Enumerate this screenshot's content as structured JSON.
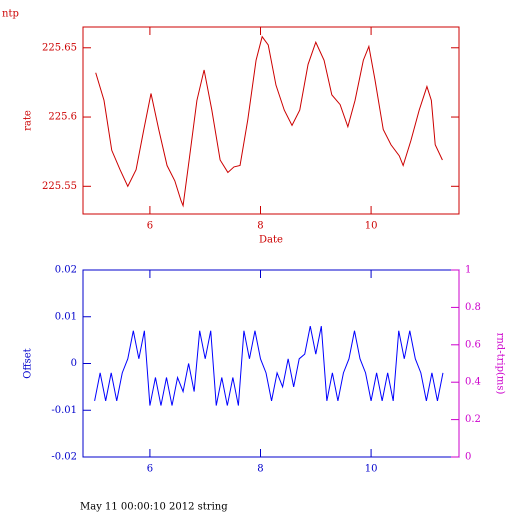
{
  "chart_data": [
    {
      "type": "line",
      "title": "ntp",
      "x_label": "Date",
      "y_label": "rate",
      "axis_color": "#cc0000",
      "xlim": [
        4.79,
        11.59
      ],
      "xticks": [
        6,
        8,
        10
      ],
      "ylim": [
        225.53,
        225.665
      ],
      "yticks": [
        225.55,
        225.6,
        225.65
      ],
      "x": [
        5.02,
        5.17,
        5.31,
        5.46,
        5.6,
        5.75,
        5.89,
        6.02,
        6.16,
        6.31,
        6.45,
        6.56,
        6.6,
        6.71,
        6.85,
        6.98,
        7.12,
        7.27,
        7.41,
        7.52,
        7.63,
        7.77,
        7.92,
        8.03,
        8.14,
        8.28,
        8.43,
        8.57,
        8.71,
        8.86,
        9.0,
        9.15,
        9.29,
        9.44,
        9.58,
        9.71,
        9.86,
        9.96,
        10.07,
        10.22,
        10.36,
        10.51,
        10.58,
        10.72,
        10.87,
        11.01,
        11.09,
        11.16,
        11.29
      ],
      "series": [
        {
          "name": "rate",
          "color": "#cc0000",
          "values": [
            225.632,
            225.612,
            225.576,
            225.562,
            225.55,
            225.562,
            225.591,
            225.617,
            225.591,
            225.565,
            225.554,
            225.54,
            225.536,
            225.569,
            225.612,
            225.634,
            225.605,
            225.569,
            225.56,
            225.564,
            225.565,
            225.598,
            225.641,
            225.658,
            225.652,
            225.623,
            225.605,
            225.594,
            225.605,
            225.638,
            225.654,
            225.641,
            225.616,
            225.609,
            225.593,
            225.612,
            225.641,
            225.651,
            225.627,
            225.591,
            225.58,
            225.572,
            225.565,
            225.583,
            225.605,
            225.622,
            225.612,
            225.58,
            225.569
          ]
        }
      ]
    },
    {
      "type": "line",
      "y_label": "Offset",
      "y2_label": "rnd-trip(ms)",
      "axis_color": "#0000cc",
      "y2_color": "#cc00cc",
      "xlim": [
        4.79,
        11.59
      ],
      "xticks": [
        6,
        8,
        10
      ],
      "ylim": [
        -0.02,
        0.02
      ],
      "yticks": [
        -0.02,
        -0.01,
        0,
        0.01,
        0.02
      ],
      "y2lim": [
        0,
        1
      ],
      "y2ticks": [
        0,
        0.2,
        0.4,
        0.6,
        0.8,
        1
      ],
      "x": [
        5.0,
        5.1,
        5.2,
        5.3,
        5.4,
        5.5,
        5.6,
        5.7,
        5.8,
        5.9,
        6.0,
        6.1,
        6.2,
        6.3,
        6.4,
        6.5,
        6.6,
        6.7,
        6.8,
        6.9,
        7.0,
        7.1,
        7.2,
        7.3,
        7.4,
        7.5,
        7.6,
        7.7,
        7.8,
        7.9,
        8.0,
        8.1,
        8.2,
        8.3,
        8.4,
        8.5,
        8.6,
        8.7,
        8.8,
        8.9,
        9.0,
        9.1,
        9.2,
        9.3,
        9.4,
        9.5,
        9.6,
        9.7,
        9.8,
        9.9,
        10.0,
        10.1,
        10.2,
        10.3,
        10.4,
        10.5,
        10.6,
        10.7,
        10.8,
        10.9,
        11.0,
        11.1,
        11.2,
        11.3
      ],
      "series": [
        {
          "name": "Offset",
          "color": "#0000ff",
          "values": [
            -0.008,
            -0.002,
            -0.008,
            -0.002,
            -0.008,
            -0.002,
            0.001,
            0.007,
            0.001,
            0.007,
            -0.009,
            -0.003,
            -0.009,
            -0.003,
            -0.009,
            -0.003,
            -0.006,
            0.0,
            -0.006,
            0.007,
            0.001,
            0.007,
            -0.009,
            -0.003,
            -0.009,
            -0.003,
            -0.009,
            0.007,
            0.001,
            0.007,
            0.001,
            -0.002,
            -0.008,
            -0.002,
            -0.005,
            0.001,
            -0.005,
            0.001,
            0.002,
            0.008,
            0.002,
            0.008,
            -0.008,
            -0.002,
            -0.008,
            -0.002,
            0.001,
            0.007,
            0.001,
            -0.002,
            -0.008,
            -0.002,
            -0.008,
            -0.002,
            -0.008,
            0.007,
            0.001,
            0.007,
            0.001,
            -0.002,
            -0.008,
            -0.002,
            -0.008,
            -0.002
          ]
        }
      ]
    }
  ],
  "footer": "May 11 00:00:10 2012 string"
}
